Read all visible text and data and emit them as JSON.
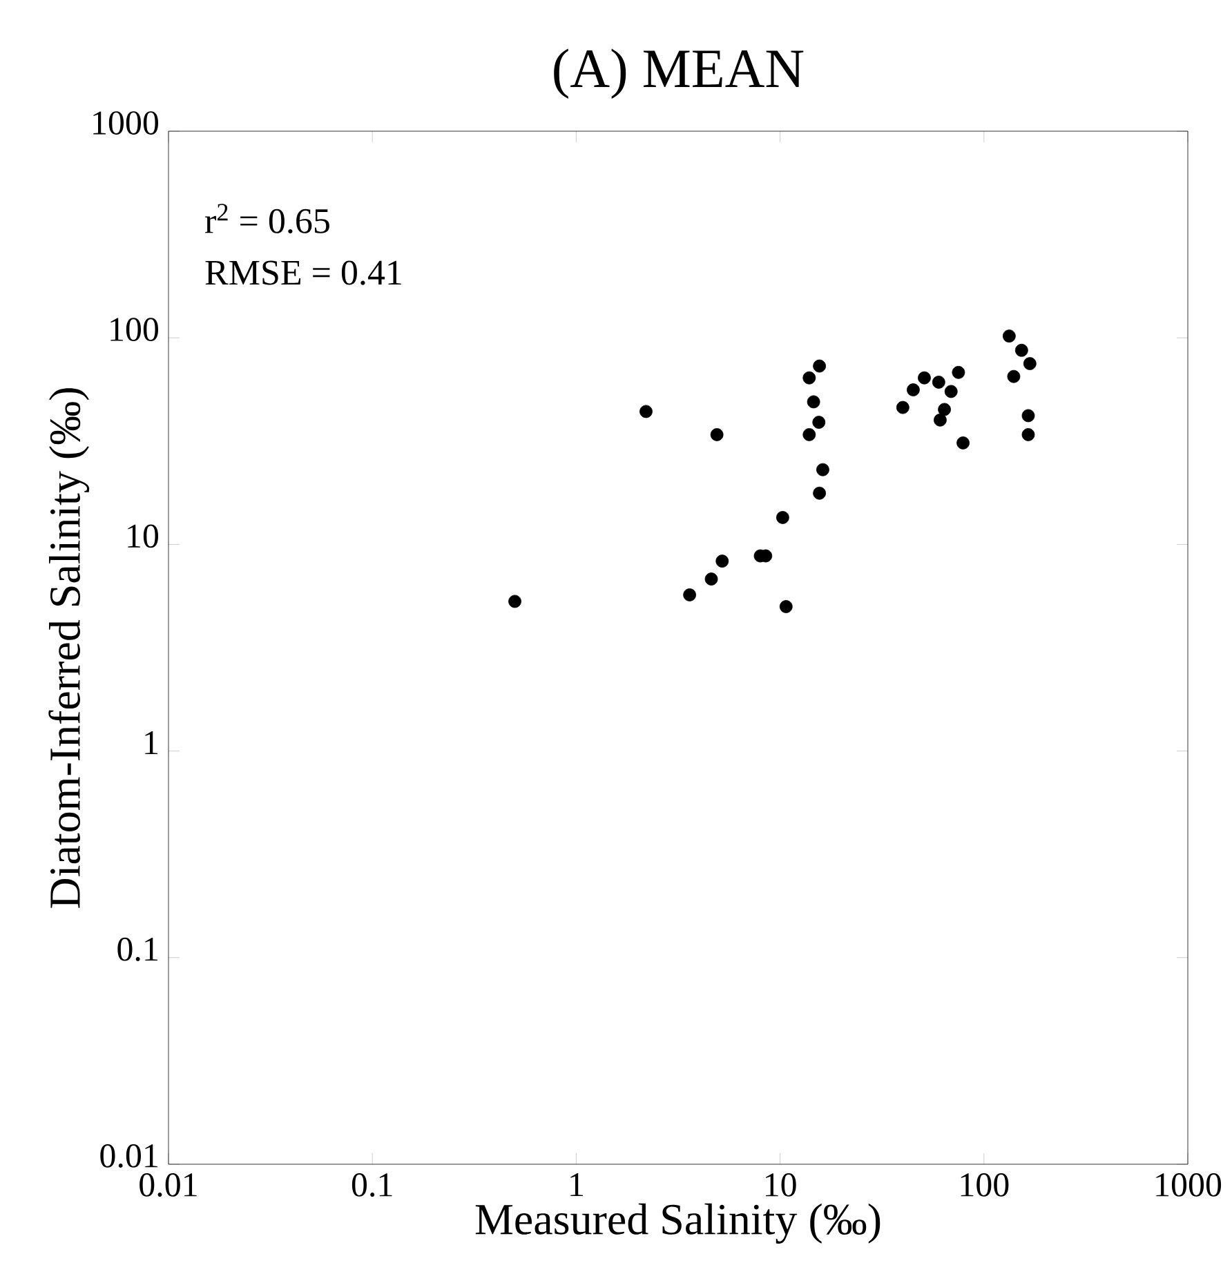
{
  "chart_data": {
    "type": "scatter",
    "title": "(A) MEAN",
    "xlabel": "Measured Salinity (‰)",
    "ylabel": "Diatom-Inferred Salinity (‰)",
    "annotations": [
      "r$^{2}$ = 0.65",
      "RMSE = 0.41"
    ],
    "log": "xy",
    "xlim": [
      0.01,
      1000
    ],
    "ylim": [
      0.01,
      1000
    ],
    "xticks": [
      0.01,
      0.1,
      1,
      10,
      100,
      1000
    ],
    "yticks": [
      0.01,
      0.1,
      1,
      10,
      100,
      1000
    ],
    "marker": "circle",
    "grid": false,
    "series": [
      {
        "color": "#000000",
        "x": [
          0.5,
          2.2,
          4.9,
          3.6,
          4.6,
          5.2,
          8.0,
          8.5,
          10.3,
          10.7,
          15.6,
          13.9,
          14.6,
          15.5,
          13.9,
          16.2,
          15.6,
          133,
          153,
          168,
          140,
          165,
          165,
          40,
          45,
          51,
          60,
          69,
          75,
          64,
          61,
          79
        ],
        "values": [
          5.3,
          44,
          34,
          5.7,
          6.8,
          8.3,
          8.8,
          8.8,
          13.5,
          5.0,
          73,
          64,
          49,
          39,
          34,
          23,
          17.7,
          102,
          87,
          75,
          65,
          42,
          34,
          46,
          56,
          64,
          61,
          55,
          68,
          45,
          40,
          31
        ]
      }
    ]
  }
}
